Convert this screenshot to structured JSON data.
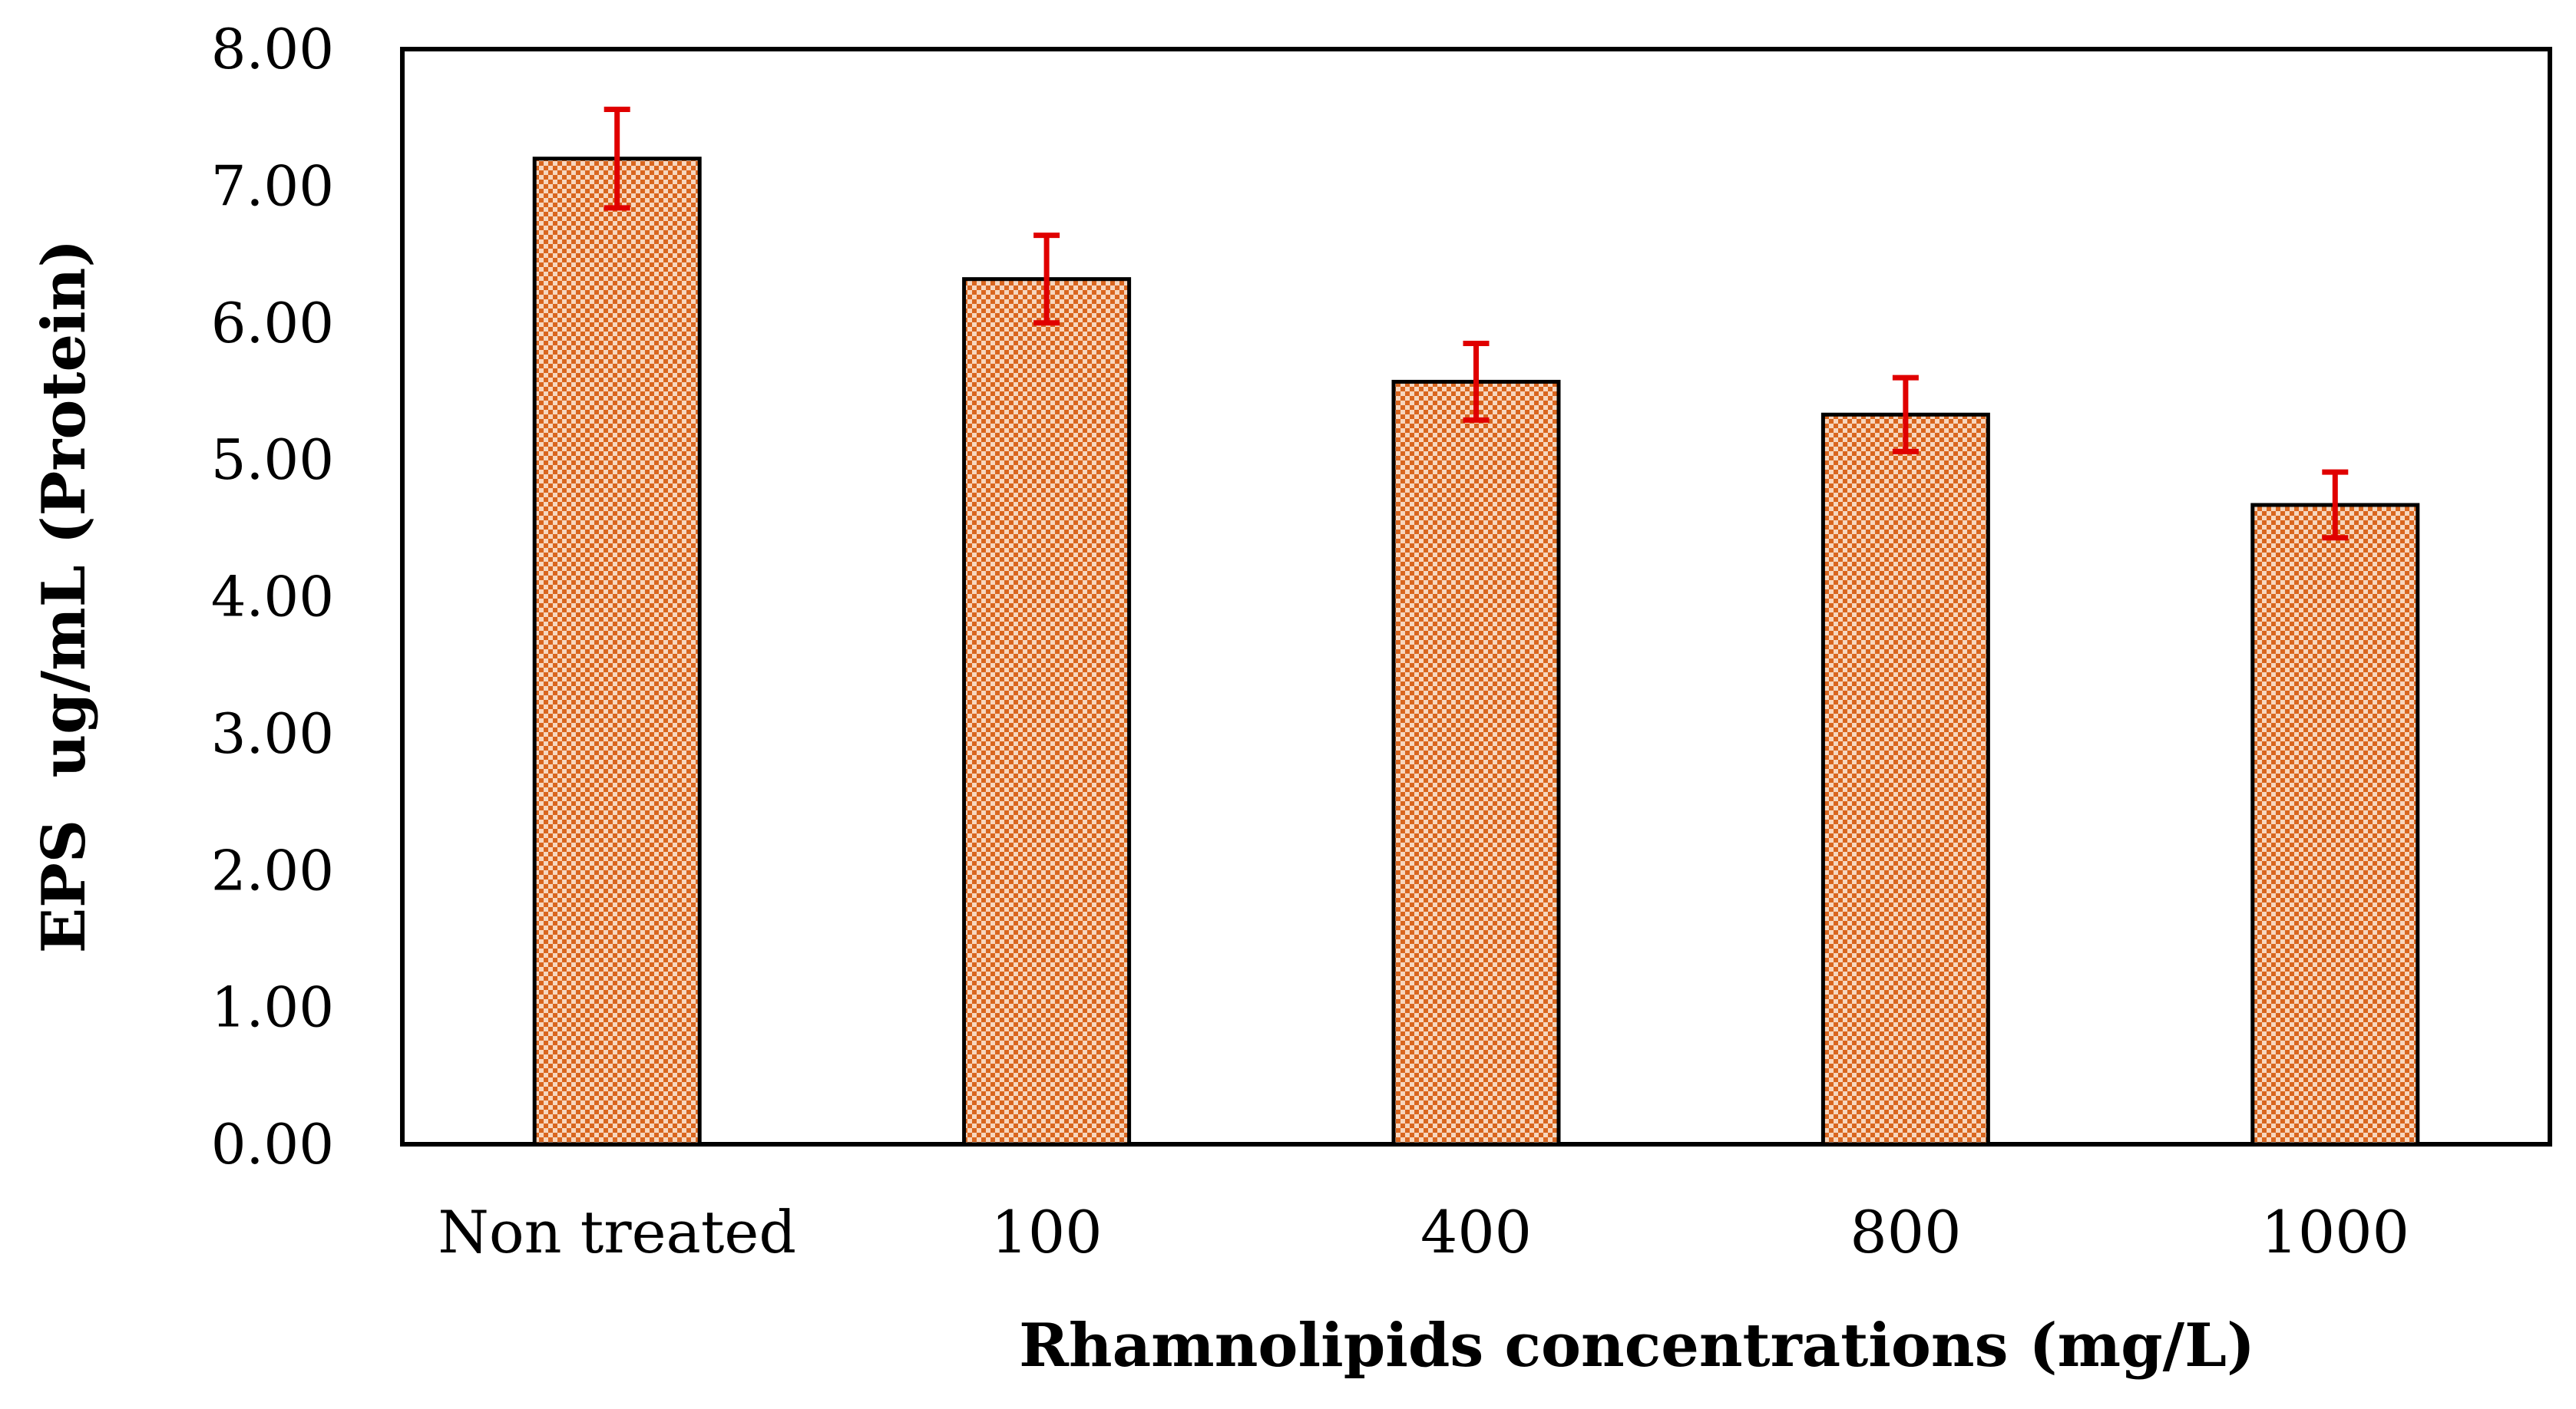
{
  "chart_data": {
    "type": "bar",
    "title": "",
    "xlabel": "Rhamnolipids concentrations (mg/L)",
    "ylabel": "EPS  ug/mL (Protein)",
    "categories": [
      "Non treated",
      "100",
      "400",
      "800",
      "1000"
    ],
    "values": [
      7.2,
      6.32,
      5.57,
      5.33,
      4.67
    ],
    "errors": [
      0.36,
      0.32,
      0.28,
      0.27,
      0.24
    ],
    "ylim": [
      0,
      8
    ],
    "yticks": [
      "0.00",
      "1.00",
      "2.00",
      "3.00",
      "4.00",
      "5.00",
      "6.00",
      "7.00",
      "8.00"
    ],
    "grid": false,
    "legend": "none",
    "colors": {
      "bar_base": "#f7d7bf",
      "bar_dot": "#d9661f",
      "bar_outline": "#000000",
      "error_bar": "#e00000",
      "axis": "#000000"
    }
  }
}
